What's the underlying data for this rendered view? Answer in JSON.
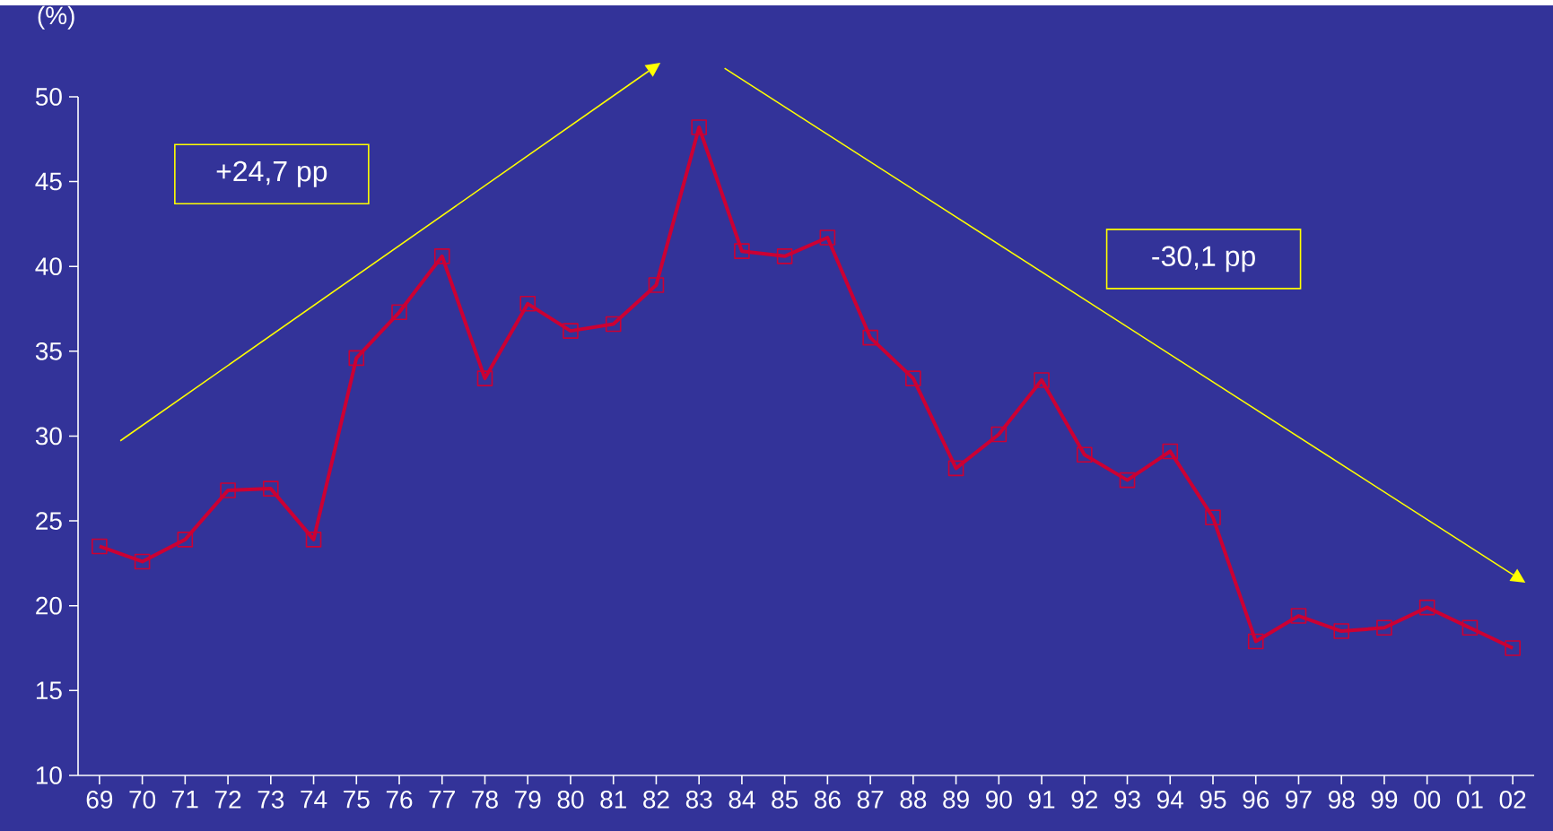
{
  "chart_data": {
    "type": "line",
    "ylabel": "(%)",
    "categories": [
      "69",
      "70",
      "71",
      "72",
      "73",
      "74",
      "75",
      "76",
      "77",
      "78",
      "79",
      "80",
      "81",
      "82",
      "83",
      "84",
      "85",
      "86",
      "87",
      "88",
      "89",
      "90",
      "91",
      "92",
      "93",
      "94",
      "95",
      "96",
      "97",
      "98",
      "99",
      "00",
      "01",
      "02"
    ],
    "series": [
      {
        "color": "#cc0033",
        "values": [
          23.5,
          22.6,
          23.9,
          26.8,
          26.9,
          23.9,
          34.6,
          37.3,
          40.6,
          33.4,
          37.8,
          36.2,
          36.6,
          38.9,
          48.2,
          40.9,
          40.6,
          41.7,
          35.8,
          33.4,
          28.1,
          30.1,
          33.3,
          28.9,
          27.4,
          29.1,
          25.2,
          17.9,
          19.4,
          18.5,
          18.7,
          19.9,
          18.7,
          17.5
        ]
      }
    ],
    "ylim": [
      10,
      50
    ],
    "yticks": [
      10,
      15,
      20,
      25,
      30,
      35,
      40,
      45,
      50
    ],
    "annotations": [
      "+24,7 pp",
      "-30,1 pp"
    ],
    "marker": "square",
    "line_style": "solid",
    "grid": false
  }
}
